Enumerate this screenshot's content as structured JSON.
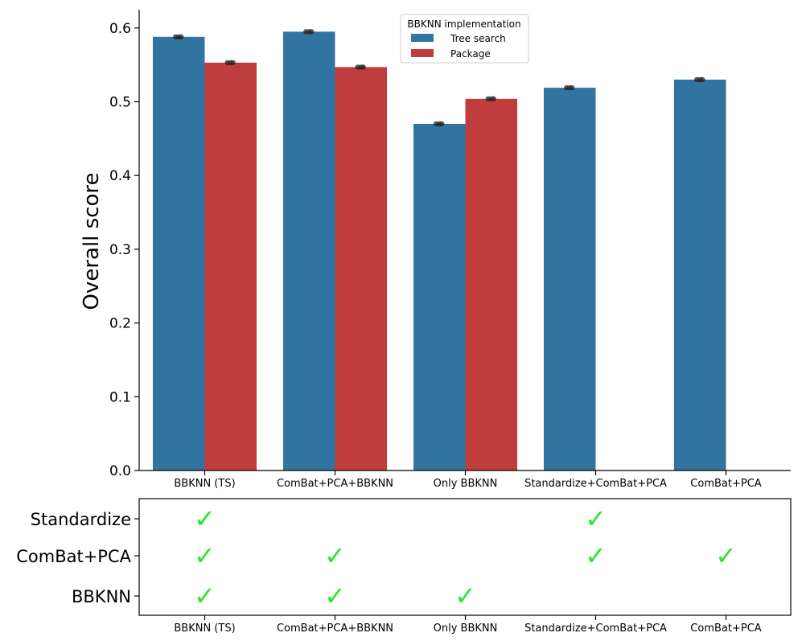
{
  "chart_data": {
    "type": "bar",
    "ylabel": "Overall score",
    "xlabel": "",
    "ylim": [
      0,
      0.625
    ],
    "yticks": [
      "0.0",
      "0.1",
      "0.2",
      "0.3",
      "0.4",
      "0.5",
      "0.6"
    ],
    "categories": [
      "BBKNN (TS)",
      "ComBat+PCA+BBKNN",
      "Only BBKNN",
      "Standardize+ComBat+PCA",
      "ComBat+PCA"
    ],
    "legend": {
      "title": "BBKNN implementation",
      "placement": "top-center"
    },
    "series": [
      {
        "name": "Tree search",
        "color": "#3274a1",
        "values": [
          0.588,
          0.595,
          0.47,
          0.519,
          0.53
        ]
      },
      {
        "name": "Package",
        "color": "#c03d3e",
        "values": [
          0.553,
          0.547,
          0.504,
          null,
          null
        ]
      }
    ],
    "grid": false
  },
  "matrix": {
    "rows": [
      "Standardize",
      "ComBat+PCA",
      "BBKNN"
    ],
    "columns": [
      "BBKNN (TS)",
      "ComBat+PCA+BBKNN",
      "Only BBKNN",
      "Standardize+ComBat+PCA",
      "ComBat+PCA"
    ],
    "checks": [
      [
        true,
        false,
        false,
        true,
        false
      ],
      [
        true,
        true,
        false,
        true,
        true
      ],
      [
        true,
        true,
        true,
        false,
        false
      ]
    ],
    "check_glyph": "✓",
    "check_color": "#2be52b"
  }
}
